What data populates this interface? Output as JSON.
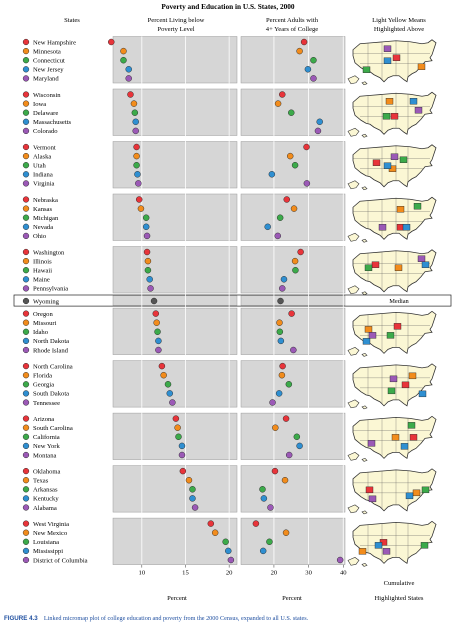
{
  "figure": {
    "title": "Poverty and Education in U.S. States, 2000",
    "caption_label": "FIGURE 4.3",
    "caption_text": "Linked micromap plot of college education and poverty from the 2000 Census, expanded to all U.S. states."
  },
  "panels": {
    "states_header": "States",
    "poverty_header": [
      "Percent Living below",
      "Poverty Level"
    ],
    "college_header": [
      "Percent Adults with",
      "4+ Years of College"
    ],
    "map_header": [
      "Light Yellow Means",
      "Highlighted Above"
    ],
    "poverty_axis_label": "Percent",
    "college_axis_label": "Percent",
    "map_footer": [
      "Cumulative",
      "Highlighted States"
    ],
    "median_label": "Median"
  },
  "colors": {
    "group": [
      "#e8343a",
      "#f28c1c",
      "#3caa4a",
      "#2f8fd1",
      "#9b59b6"
    ],
    "median": "#555555",
    "panel_bg": "#d6d6d6",
    "map_bg": "#fbf7d4",
    "accent_caption": "#1f4fa0"
  },
  "chart_data": {
    "type": "scatter",
    "sort": "poverty ascending",
    "poverty_axis": {
      "ticks": [
        10,
        15,
        20
      ],
      "xlim": [
        6.7,
        20.9
      ]
    },
    "college_axis": {
      "ticks": [
        20,
        30,
        40
      ],
      "xlim": [
        10.5,
        40.5
      ]
    },
    "groups": [
      [
        {
          "state": "New Hampshire",
          "poverty": 6.5,
          "college": 28.7
        },
        {
          "state": "Minnesota",
          "poverty": 7.9,
          "college": 27.4
        },
        {
          "state": "Connecticut",
          "poverty": 7.9,
          "college": 31.4
        },
        {
          "state": "New Jersey",
          "poverty": 8.5,
          "college": 29.8
        },
        {
          "state": "Maryland",
          "poverty": 8.5,
          "college": 31.4
        }
      ],
      [
        {
          "state": "Wisconsin",
          "poverty": 8.7,
          "college": 22.4
        },
        {
          "state": "Iowa",
          "poverty": 9.1,
          "college": 21.2
        },
        {
          "state": "Delaware",
          "poverty": 9.2,
          "college": 25.0
        },
        {
          "state": "Massachusetts",
          "poverty": 9.3,
          "college": 33.2
        },
        {
          "state": "Colorado",
          "poverty": 9.3,
          "college": 32.7
        }
      ],
      [
        {
          "state": "Vermont",
          "poverty": 9.4,
          "college": 29.4
        },
        {
          "state": "Alaska",
          "poverty": 9.4,
          "college": 24.7
        },
        {
          "state": "Utah",
          "poverty": 9.4,
          "college": 26.1
        },
        {
          "state": "Indiana",
          "poverty": 9.5,
          "college": 19.4
        },
        {
          "state": "Virginia",
          "poverty": 9.6,
          "college": 29.5
        }
      ],
      [
        {
          "state": "Nebraska",
          "poverty": 9.7,
          "college": 23.7
        },
        {
          "state": "Kansas",
          "poverty": 9.9,
          "college": 25.8
        },
        {
          "state": "Michigan",
          "poverty": 10.5,
          "college": 21.8
        },
        {
          "state": "Nevada",
          "poverty": 10.5,
          "college": 18.2
        },
        {
          "state": "Ohio",
          "poverty": 10.6,
          "college": 21.1
        }
      ],
      [
        {
          "state": "Washington",
          "poverty": 10.6,
          "college": 27.7
        },
        {
          "state": "Illinois",
          "poverty": 10.7,
          "college": 26.1
        },
        {
          "state": "Hawaii",
          "poverty": 10.7,
          "college": 26.2
        },
        {
          "state": "Maine",
          "poverty": 10.9,
          "college": 22.9
        },
        {
          "state": "Pennsylvania",
          "poverty": 11.0,
          "college": 22.4
        }
      ],
      [
        {
          "state": "Wyoming",
          "poverty": 11.4,
          "college": 21.9
        }
      ],
      [
        {
          "state": "Oregon",
          "poverty": 11.6,
          "college": 25.1
        },
        {
          "state": "Missouri",
          "poverty": 11.7,
          "college": 21.6
        },
        {
          "state": "Idaho",
          "poverty": 11.8,
          "college": 21.7
        },
        {
          "state": "North Dakota",
          "poverty": 11.9,
          "college": 22.0
        },
        {
          "state": "Rhode Island",
          "poverty": 11.9,
          "college": 25.6
        }
      ],
      [
        {
          "state": "North Carolina",
          "poverty": 12.3,
          "college": 22.5
        },
        {
          "state": "Florida",
          "poverty": 12.5,
          "college": 22.3
        },
        {
          "state": "Georgia",
          "poverty": 13.0,
          "college": 24.3
        },
        {
          "state": "South Dakota",
          "poverty": 13.2,
          "college": 21.5
        },
        {
          "state": "Tennessee",
          "poverty": 13.5,
          "college": 19.6
        }
      ],
      [
        {
          "state": "Arizona",
          "poverty": 13.9,
          "college": 23.5
        },
        {
          "state": "South Carolina",
          "poverty": 14.1,
          "college": 20.4
        },
        {
          "state": "California",
          "poverty": 14.2,
          "college": 26.6
        },
        {
          "state": "New York",
          "poverty": 14.6,
          "college": 27.4
        },
        {
          "state": "Montana",
          "poverty": 14.6,
          "college": 24.4
        }
      ],
      [
        {
          "state": "Oklahoma",
          "poverty": 14.7,
          "college": 20.3
        },
        {
          "state": "Texas",
          "poverty": 15.4,
          "college": 23.2
        },
        {
          "state": "Arkansas",
          "poverty": 15.8,
          "college": 16.7
        },
        {
          "state": "Kentucky",
          "poverty": 15.8,
          "college": 17.1
        },
        {
          "state": "Alabama",
          "poverty": 16.1,
          "college": 19.0
        }
      ],
      [
        {
          "state": "West Virginia",
          "poverty": 17.9,
          "college": 14.8
        },
        {
          "state": "New Mexico",
          "poverty": 18.4,
          "college": 23.5
        },
        {
          "state": "Louisiana",
          "poverty": 19.6,
          "college": 18.7
        },
        {
          "state": "Mississippi",
          "poverty": 19.9,
          "college": 16.9
        },
        {
          "state": "District of Columbia",
          "poverty": 20.2,
          "college": 39.1
        }
      ]
    ]
  }
}
